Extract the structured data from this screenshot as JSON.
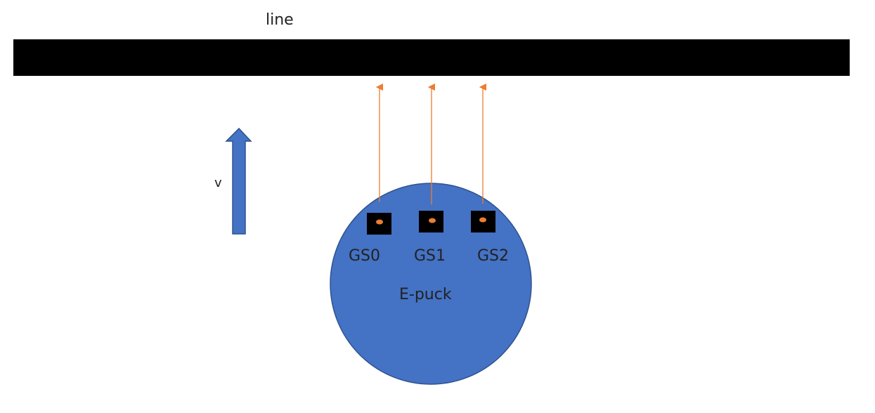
{
  "line": {
    "label": "line"
  },
  "velocity": {
    "label": "v"
  },
  "robot": {
    "label": "E-puck"
  },
  "sensors": [
    {
      "label": "GS0"
    },
    {
      "label": "GS1"
    },
    {
      "label": "GS2"
    }
  ],
  "colors": {
    "line": "#000000",
    "robot_fill": "#4472c4",
    "robot_stroke": "#2f528f",
    "arrow_fill": "#4472c4",
    "ray": "#ed7d31",
    "sensor_body": "#000000",
    "sensor_led": "#ed7d31"
  }
}
